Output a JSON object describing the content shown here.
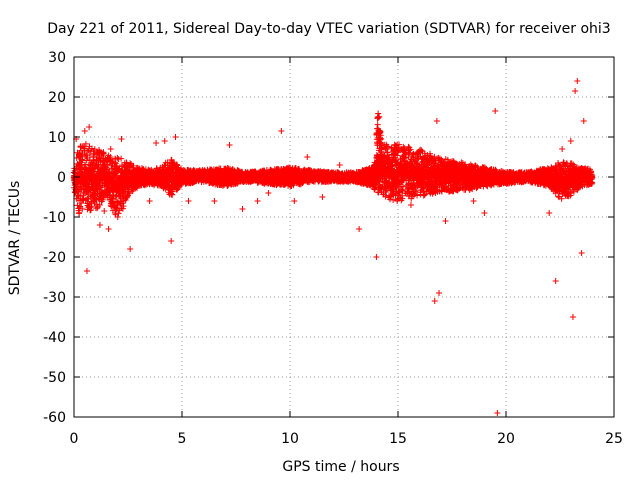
{
  "chart_data": {
    "type": "scatter",
    "title": "Day 221 of 2011, Sidereal Day-to-day VTEC variation (SDTVAR) for receiver ohi3",
    "xlabel": "GPS time / hours",
    "ylabel": "SDTVAR / TECUs",
    "xlim": [
      0,
      25
    ],
    "ylim": [
      -60,
      30
    ],
    "xticks": [
      0,
      5,
      10,
      15,
      20,
      25
    ],
    "yticks": [
      -60,
      -50,
      -40,
      -30,
      -20,
      -10,
      0,
      10,
      20,
      30
    ],
    "grid": true,
    "marker": "+",
    "color": "#ff0000",
    "dense_band": [
      [
        0.0,
        -3,
        3
      ],
      [
        0.2,
        -8,
        6
      ],
      [
        0.5,
        -7,
        7
      ],
      [
        1.0,
        -7,
        6
      ],
      [
        1.5,
        -4,
        5
      ],
      [
        2.0,
        -10,
        4
      ],
      [
        2.5,
        -4,
        3
      ],
      [
        3.0,
        -2,
        2
      ],
      [
        3.5,
        -1.5,
        1.5
      ],
      [
        4.0,
        -2,
        2
      ],
      [
        4.5,
        -4,
        4
      ],
      [
        5.0,
        -1.5,
        1.5
      ],
      [
        6.0,
        -1,
        1.5
      ],
      [
        7.0,
        -2,
        2
      ],
      [
        7.5,
        -1.5,
        1.5
      ],
      [
        8.0,
        -1,
        1
      ],
      [
        9.0,
        -1.5,
        1.5
      ],
      [
        10.0,
        -2,
        2
      ],
      [
        11.0,
        -1,
        1.5
      ],
      [
        12.0,
        -1,
        1
      ],
      [
        13.0,
        -1,
        1
      ],
      [
        13.8,
        -2,
        2
      ],
      [
        14.0,
        -3,
        4
      ],
      [
        14.2,
        -4,
        7
      ],
      [
        15.0,
        -5,
        7
      ],
      [
        16.0,
        -4,
        6
      ],
      [
        17.0,
        -3,
        4
      ],
      [
        18.0,
        -3,
        3
      ],
      [
        19.0,
        -2,
        2
      ],
      [
        20.0,
        -1.5,
        1
      ],
      [
        21.0,
        -1,
        1
      ],
      [
        22.0,
        -2,
        2
      ],
      [
        22.5,
        -5,
        3
      ],
      [
        23.0,
        -4,
        3
      ],
      [
        23.5,
        -2,
        2
      ],
      [
        24.0,
        -1.5,
        1.5
      ]
    ],
    "spike": {
      "x": [
        14.0,
        14.3
      ],
      "y_min": 0,
      "y_max": 18
    },
    "outliers": {
      "x": [
        0.1,
        0.3,
        0.5,
        0.6,
        0.7,
        0.9,
        1.2,
        1.4,
        1.6,
        1.7,
        1.9,
        2.2,
        2.6,
        3.5,
        3.8,
        4.2,
        4.5,
        4.7,
        5.3,
        6.5,
        7.2,
        7.8,
        8.5,
        9.0,
        9.6,
        10.2,
        10.8,
        11.5,
        12.3,
        13.2,
        14.0,
        15.6,
        16.7,
        16.8,
        16.9,
        17.2,
        18.5,
        19.0,
        19.5,
        19.6,
        22.0,
        22.3,
        22.6,
        23.0,
        23.1,
        23.2,
        23.3,
        23.5,
        23.6
      ],
      "y": [
        9.5,
        5,
        11.5,
        -23.5,
        12.5,
        6.5,
        -12,
        -8.5,
        -13,
        7,
        4.5,
        9.5,
        -18,
        -6,
        8.5,
        9,
        -16,
        10,
        -6,
        -6,
        8,
        -8,
        -6,
        -4,
        11.5,
        -6,
        5,
        -5,
        3,
        -13,
        -20,
        -7,
        -31,
        14,
        -29,
        -11,
        -6,
        -9,
        16.5,
        -59,
        -9,
        -26,
        7,
        9,
        -35,
        21.5,
        24,
        -19,
        14
      ]
    }
  }
}
